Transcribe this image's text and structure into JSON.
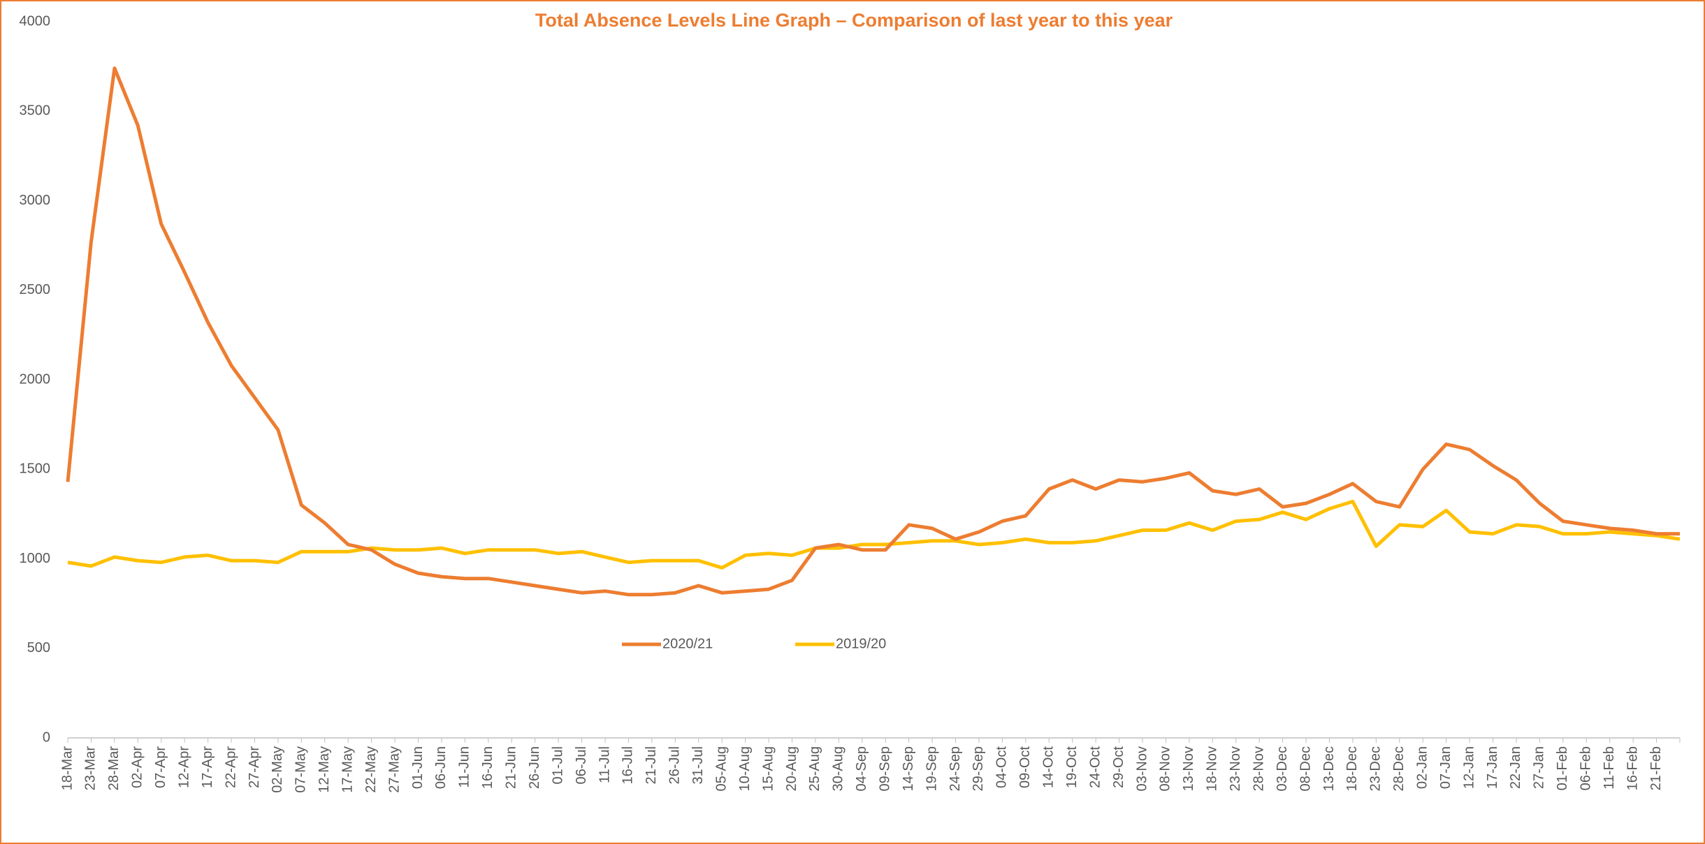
{
  "chart_data": {
    "type": "line",
    "title": "Total Absence Levels Line Graph – Comparison of last year to this year",
    "categories": [
      "18-Mar",
      "23-Mar",
      "28-Mar",
      "02-Apr",
      "07-Apr",
      "12-Apr",
      "17-Apr",
      "22-Apr",
      "27-Apr",
      "02-May",
      "07-May",
      "12-May",
      "17-May",
      "22-May",
      "27-May",
      "01-Jun",
      "06-Jun",
      "11-Jun",
      "16-Jun",
      "21-Jun",
      "26-Jun",
      "01-Jul",
      "06-Jul",
      "11-Jul",
      "16-Jul",
      "21-Jul",
      "26-Jul",
      "31-Jul",
      "05-Aug",
      "10-Aug",
      "15-Aug",
      "20-Aug",
      "25-Aug",
      "30-Aug",
      "04-Sep",
      "09-Sep",
      "14-Sep",
      "19-Sep",
      "24-Sep",
      "29-Sep",
      "04-Oct",
      "09-Oct",
      "14-Oct",
      "19-Oct",
      "24-Oct",
      "29-Oct",
      "03-Nov",
      "08-Nov",
      "13-Nov",
      "18-Nov",
      "23-Nov",
      "28-Nov",
      "03-Dec",
      "08-Dec",
      "13-Dec",
      "18-Dec",
      "23-Dec",
      "28-Dec",
      "02-Jan",
      "07-Jan",
      "12-Jan",
      "17-Jan",
      "22-Jan",
      "27-Jan",
      "01-Feb",
      "06-Feb",
      "11-Feb",
      "16-Feb",
      "21-Feb",
      null
    ],
    "series": [
      {
        "name": "2020/21",
        "color": "#ED7D31",
        "values": [
          1430,
          2770,
          3740,
          3420,
          2870,
          2600,
          2320,
          2080,
          1900,
          1720,
          1300,
          1200,
          1080,
          1050,
          970,
          920,
          900,
          890,
          890,
          870,
          850,
          830,
          810,
          820,
          800,
          800,
          810,
          850,
          810,
          820,
          830,
          880,
          1060,
          1080,
          1050,
          1050,
          1190,
          1170,
          1110,
          1150,
          1210,
          1240,
          1390,
          1440,
          1390,
          1440,
          1430,
          1450,
          1480,
          1380,
          1360,
          1390,
          1290,
          1310,
          1360,
          1420,
          1320,
          1290,
          1500,
          1640,
          1610,
          1520,
          1440,
          1310,
          1210,
          1190,
          1170,
          1160,
          1140,
          1140
        ]
      },
      {
        "name": "2019/20",
        "color": "#FFC000",
        "values": [
          980,
          960,
          1010,
          990,
          980,
          1010,
          1020,
          990,
          990,
          980,
          1040,
          1040,
          1040,
          1060,
          1050,
          1050,
          1060,
          1030,
          1050,
          1050,
          1050,
          1030,
          1040,
          1010,
          980,
          990,
          990,
          990,
          950,
          1020,
          1030,
          1020,
          1060,
          1060,
          1080,
          1080,
          1090,
          1100,
          1100,
          1080,
          1090,
          1110,
          1090,
          1090,
          1100,
          1130,
          1160,
          1160,
          1200,
          1160,
          1210,
          1220,
          1260,
          1220,
          1280,
          1320,
          1070,
          1190,
          1180,
          1270,
          1150,
          1140,
          1190,
          1180,
          1140,
          1140,
          1150,
          1140,
          1130,
          1110
        ]
      }
    ],
    "ylim": [
      0,
      4000
    ],
    "yticks": [
      0,
      500,
      1000,
      1500,
      2000,
      2500,
      3000,
      3500,
      4000
    ]
  }
}
